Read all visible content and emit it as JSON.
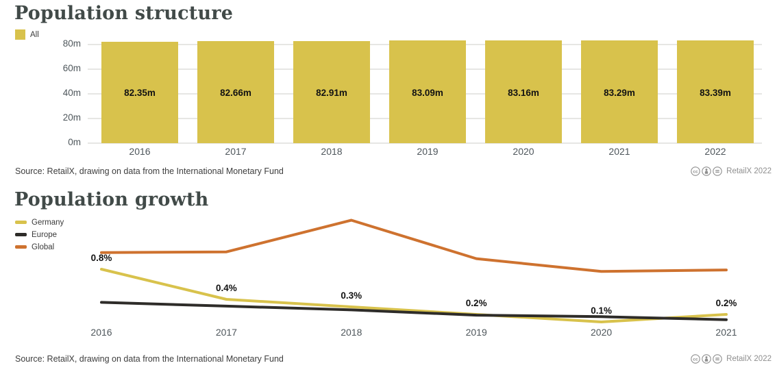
{
  "colors": {
    "yellow": "#d8c24c",
    "orange": "#ce722f",
    "dark": "#2e2c29",
    "grid": "#e6e6e4",
    "title_text": "#414a48",
    "axis_text": "#4e565b",
    "source_text": "#3d3d3d",
    "credit_text": "#8e8e8e"
  },
  "chart_data": [
    {
      "type": "bar",
      "title": "Population structure",
      "legend": [
        {
          "label": "All",
          "color": "#d8c24c"
        }
      ],
      "categories": [
        "2016",
        "2017",
        "2018",
        "2019",
        "2020",
        "2021",
        "2022"
      ],
      "values": [
        82.35,
        82.66,
        82.91,
        83.09,
        83.16,
        83.29,
        83.39
      ],
      "value_labels": [
        "82.35m",
        "82.66m",
        "82.91m",
        "83.09m",
        "83.16m",
        "83.29m",
        "83.39m"
      ],
      "unit": "m",
      "y_ticks": [
        {
          "label": "80m",
          "value": 80
        },
        {
          "label": "60m",
          "value": 60
        },
        {
          "label": "40m",
          "value": 40
        },
        {
          "label": "20m",
          "value": 20
        },
        {
          "label": "0m",
          "value": 0
        }
      ],
      "ylim": [
        0,
        80
      ],
      "grid": true,
      "legend_position": "top-left",
      "source": "Source: RetailX, drawing on data from the International Monetary Fund",
      "credit": "RetailX 2022"
    },
    {
      "type": "line",
      "title": "Population growth",
      "categories": [
        "2016",
        "2017",
        "2018",
        "2019",
        "2020",
        "2021"
      ],
      "series": [
        {
          "name": "Germany",
          "color": "#d8c24c",
          "values": [
            0.8,
            0.4,
            0.3,
            0.2,
            0.1,
            0.2
          ],
          "point_labels": [
            "0.8%",
            "0.4%",
            "0.3%",
            "0.2%",
            "0.1%",
            "0.2%"
          ]
        },
        {
          "name": "Europe",
          "color": "#2e2c29",
          "values": [
            0.36,
            0.31,
            0.26,
            0.19,
            0.17,
            0.13
          ]
        },
        {
          "name": "Global",
          "color": "#ce722f",
          "values": [
            1.02,
            1.03,
            1.45,
            0.94,
            0.77,
            0.79
          ]
        }
      ],
      "ylim": [
        0,
        1.6
      ],
      "grid": false,
      "legend_position": "top-left",
      "source": "Source: RetailX, drawing on data from the International Monetary Fund",
      "credit": "RetailX 2022"
    }
  ]
}
